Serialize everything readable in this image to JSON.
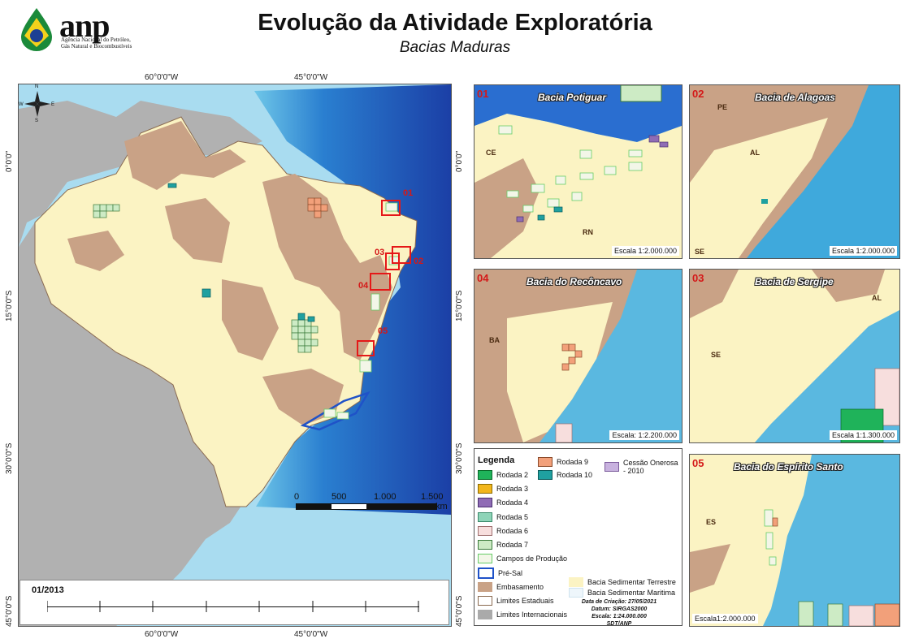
{
  "header": {
    "title": "Evolução da Atividade Exploratória",
    "subtitle": "Bacias Maduras",
    "logo_text": "anp",
    "logo_sub": "Agência Nacional do Petróleo, Gás Natural e Biocombustíveis"
  },
  "main_map": {
    "lon_labels_top": [
      "60°0'0\"W",
      "45°0'0\"W"
    ],
    "lon_labels_bottom": [
      "60°0'0\"W",
      "45°0'0\"W"
    ],
    "lat_labels_left": [
      "0°0'0\"",
      "15°0'0\"S",
      "30°0'0\"S",
      "45°0'0\"S"
    ],
    "lat_labels_right": [
      "0°0'0\"",
      "15°0'0\"S",
      "30°0'0\"S",
      "45°0'0\"S"
    ],
    "box_labels": [
      "01",
      "02",
      "03",
      "04",
      "05"
    ],
    "scalebar": {
      "ticks": [
        "0",
        "500",
        "1.000",
        "1.500"
      ],
      "unit": "km"
    },
    "timeline_label": "01/2013",
    "compass": [
      "N",
      "S",
      "E",
      "W"
    ]
  },
  "insets": [
    {
      "number": "01",
      "title": "Bacia Potiguar",
      "scale": "Escala 1:2.000.000",
      "labels": [
        "CE",
        "RN"
      ]
    },
    {
      "number": "02",
      "title": "Bacia de Alagoas",
      "scale": "Escala 1:2.000.000",
      "labels": [
        "PE",
        "AL",
        "SE"
      ]
    },
    {
      "number": "04",
      "title": "Bacia do Recôncavo",
      "scale": "Escala: 1:2.200.000",
      "labels": [
        "BA"
      ]
    },
    {
      "number": "03",
      "title": "Bacia de Sergipe",
      "scale": "Escala 1:1.300.000",
      "labels": [
        "SE",
        "AL"
      ]
    },
    {
      "number": "05",
      "title": "Bacia do Espírito Santo",
      "scale": "Escala1:2.000.000",
      "labels": [
        "ES"
      ]
    }
  ],
  "legend": {
    "title": "Legenda",
    "items": [
      {
        "label": "Rodada 2",
        "color": "#1fb35a",
        "border": "#0a6a2a"
      },
      {
        "label": "Rodada 3",
        "color": "#f2b61c",
        "border": "#8a6a00"
      },
      {
        "label": "Rodada 4",
        "color": "#8f6cb5",
        "border": "#4a2f70"
      },
      {
        "label": "Rodada 5",
        "color": "#8ed4b8",
        "border": "#3a8a6a"
      },
      {
        "label": "Rodada 6",
        "color": "#f7dedd",
        "border": "#a07070"
      },
      {
        "label": "Rodada 7",
        "color": "#cdebc5",
        "border": "#3a7a3a"
      },
      {
        "label": "Campos de Produção",
        "color": "#f3f6e8",
        "border": "#66cc66"
      },
      {
        "label": "Pré-Sal",
        "color": "#ffffff",
        "border": "#1f52c8"
      },
      {
        "label": "Embasamento",
        "color": "#c9a286",
        "border": "#c9a286"
      },
      {
        "label": "Limites Estaduais",
        "color": "#ffffff",
        "border": "#8a6a50"
      },
      {
        "label": "Limites Internacionais",
        "color": "#aaaaaa",
        "border": "#aaaaaa"
      }
    ],
    "items_col2": [
      {
        "label": "Rodada 9",
        "color": "#f2a07a",
        "border": "#8a4a2a"
      },
      {
        "label": "Rodada 10",
        "color": "#1fa0a0",
        "border": "#0a5a5a"
      }
    ],
    "cessao": {
      "label": "Cessão Onerosa - 2010",
      "color": "#c8b2df",
      "border": "#7a5a9a"
    },
    "bacia_terrestre": {
      "label": "Bacia Sedimentar Terrestre",
      "color": "#fbf3c3"
    },
    "bacia_maritima": {
      "label": "Bacia Sedimentar Maritima",
      "color": "#eef6fb"
    },
    "metadata": [
      "Data de Criação: 27/05/2021",
      "Datum: SIRGAS2000",
      "Escala: 1:24.000.000",
      "SDT/ANP"
    ]
  }
}
